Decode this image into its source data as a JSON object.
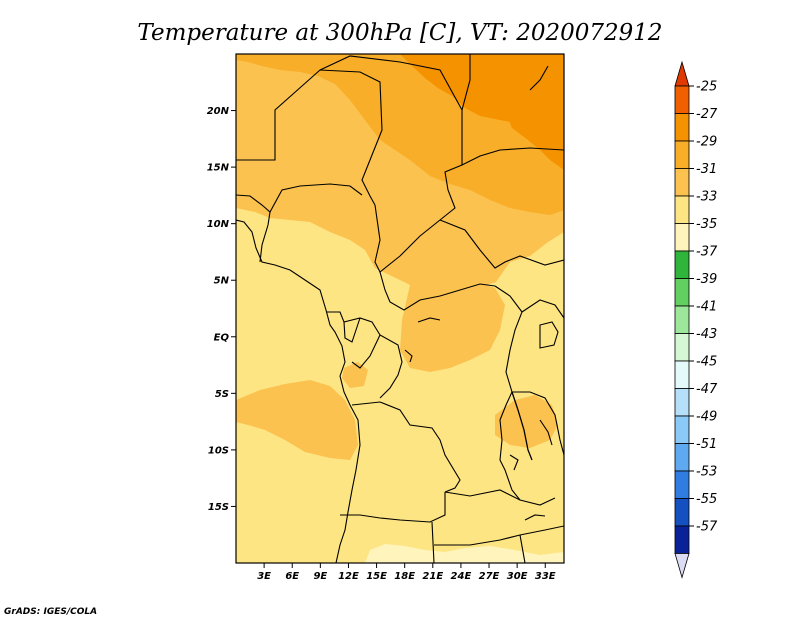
{
  "title": "Temperature at 300hPa [C], VT: 2020072912",
  "credit": "GrADS: IGES/COLA",
  "map": {
    "lon_range": [
      0,
      35
    ],
    "lat_range": [
      -20,
      25
    ],
    "lon_ticks": [
      {
        "value": 3,
        "label": "3E"
      },
      {
        "value": 6,
        "label": "6E"
      },
      {
        "value": 9,
        "label": "9E"
      },
      {
        "value": 12,
        "label": "12E"
      },
      {
        "value": 15,
        "label": "15E"
      },
      {
        "value": 18,
        "label": "18E"
      },
      {
        "value": 21,
        "label": "21E"
      },
      {
        "value": 24,
        "label": "24E"
      },
      {
        "value": 27,
        "label": "27E"
      },
      {
        "value": 30,
        "label": "30E"
      },
      {
        "value": 33,
        "label": "33E"
      }
    ],
    "lat_ticks": [
      {
        "value": 20,
        "label": "20N"
      },
      {
        "value": 15,
        "label": "15N"
      },
      {
        "value": 10,
        "label": "10N"
      },
      {
        "value": 5,
        "label": "5N"
      },
      {
        "value": 0,
        "label": "EQ"
      },
      {
        "value": -5,
        "label": "5S"
      },
      {
        "value": -10,
        "label": "10S"
      },
      {
        "value": -15,
        "label": "15S"
      }
    ]
  },
  "colorbar": {
    "levels": [
      {
        "label": "-25",
        "color": "#f06000"
      },
      {
        "label": "-27",
        "color": "#f59200"
      },
      {
        "label": "-29",
        "color": "#f8ae28"
      },
      {
        "label": "-31",
        "color": "#fbc24f"
      },
      {
        "label": "-33",
        "color": "#fde583"
      },
      {
        "label": "-35",
        "color": "#fff5bc"
      },
      {
        "label": "-37",
        "color": "#2fb53c"
      },
      {
        "label": "-39",
        "color": "#61d061"
      },
      {
        "label": "-41",
        "color": "#9de79a"
      },
      {
        "label": "-43",
        "color": "#d6f7d4"
      },
      {
        "label": "-45",
        "color": "#e4f9fa"
      },
      {
        "label": "-47",
        "color": "#b6e0fa"
      },
      {
        "label": "-49",
        "color": "#8bc9f6"
      },
      {
        "label": "-51",
        "color": "#5ea9ef"
      },
      {
        "label": "-53",
        "color": "#2f7de0"
      },
      {
        "label": "-55",
        "color": "#1450c0"
      },
      {
        "label": "-57",
        "color": "#0a2298"
      }
    ],
    "top_arrow_color": "#e03a00",
    "bottom_arrow_color": "#dcdcf4"
  },
  "field_colors": {
    "c27": "#f59200",
    "c29": "#f8ae28",
    "c31": "#fbc24f",
    "c33": "#fde583",
    "c35": "#fff5bc"
  }
}
